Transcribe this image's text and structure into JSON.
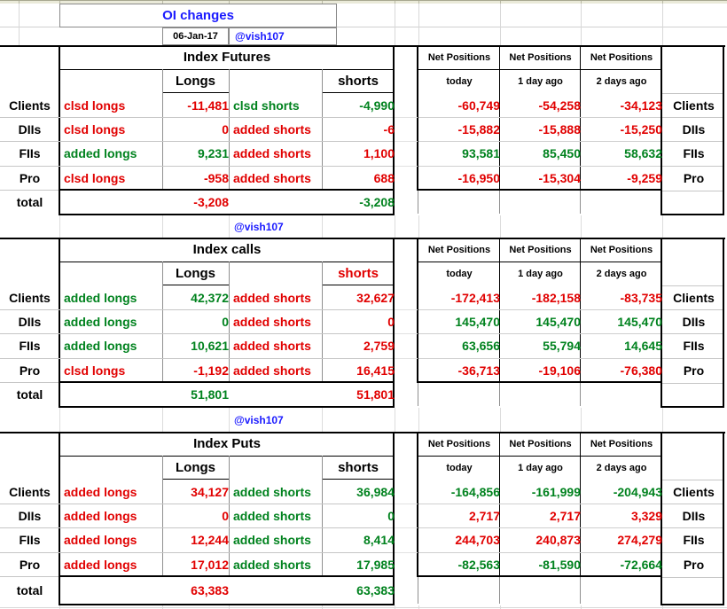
{
  "app": {
    "kind": "spreadsheet"
  },
  "palette": {
    "red": "#e10000",
    "green": "#00821e",
    "blue": "#1a1aff",
    "black": "#000000",
    "grid_light": "#c6c6c6",
    "grid_dark": "#8f8f8f",
    "top_strip": "#eaead9"
  },
  "header": {
    "title": "OI changes",
    "date": "06-Jan-17",
    "handle": "@vish107"
  },
  "sections": [
    {
      "name": "index-futures",
      "title": "Index Futures",
      "longs": {
        "label": "Longs",
        "color": "black"
      },
      "shorts": {
        "label": "shorts",
        "color": "black"
      },
      "net_header": [
        "Net Positions",
        "Net Positions",
        "Net Positions"
      ],
      "periods": [
        "today",
        "1 day ago",
        "2 days ago"
      ],
      "rows": [
        {
          "label": "Clients",
          "a1": "clsd longs",
          "a1c": "red",
          "v1": "-11,481",
          "v1c": "red",
          "a2": "clsd shorts",
          "a2c": "green",
          "v2": "-4,990",
          "v2c": "green",
          "net": [
            "-60,749",
            "-54,258",
            "-34,123"
          ],
          "netc": [
            "red",
            "red",
            "red"
          ],
          "rlabel": "Clients"
        },
        {
          "label": "DIIs",
          "a1": "clsd longs",
          "a1c": "red",
          "v1": "0",
          "v1c": "red",
          "a2": "added shorts",
          "a2c": "red",
          "v2": "-6",
          "v2c": "red",
          "net": [
            "-15,882",
            "-15,888",
            "-15,250"
          ],
          "netc": [
            "red",
            "red",
            "red"
          ],
          "rlabel": "DIIs"
        },
        {
          "label": "FIIs",
          "a1": "added longs",
          "a1c": "green",
          "v1": "9,231",
          "v1c": "green",
          "a2": "added shorts",
          "a2c": "red",
          "v2": "1,100",
          "v2c": "red",
          "net": [
            "93,581",
            "85,450",
            "58,632"
          ],
          "netc": [
            "green",
            "green",
            "green"
          ],
          "rlabel": "FIIs"
        },
        {
          "label": "Pro",
          "a1": "clsd longs",
          "a1c": "red",
          "v1": "-958",
          "v1c": "red",
          "a2": "added shorts",
          "a2c": "red",
          "v2": "688",
          "v2c": "red",
          "net": [
            "-16,950",
            "-15,304",
            "-9,259"
          ],
          "netc": [
            "red",
            "red",
            "red"
          ],
          "rlabel": "Pro"
        }
      ],
      "total": {
        "label": "total",
        "v1": "-3,208",
        "v1c": "red",
        "v2": "-3,208",
        "v2c": "green"
      },
      "footer": "@vish107"
    },
    {
      "name": "index-calls",
      "title": "Index calls",
      "longs": {
        "label": "Longs",
        "color": "black"
      },
      "shorts": {
        "label": "shorts",
        "color": "red"
      },
      "net_header": [
        "Net Positions",
        "Net Positions",
        "Net Positions"
      ],
      "periods": [
        "today",
        "1 day ago",
        "2 days ago"
      ],
      "rows": [
        {
          "label": "Clients",
          "a1": "added longs",
          "a1c": "green",
          "v1": "42,372",
          "v1c": "green",
          "a2": "added shorts",
          "a2c": "red",
          "v2": "32,627",
          "v2c": "red",
          "net": [
            "-172,413",
            "-182,158",
            "-83,735"
          ],
          "netc": [
            "red",
            "red",
            "red"
          ],
          "rlabel": "Clients"
        },
        {
          "label": "DIIs",
          "a1": "added longs",
          "a1c": "green",
          "v1": "0",
          "v1c": "green",
          "a2": "added shorts",
          "a2c": "red",
          "v2": "0",
          "v2c": "red",
          "net": [
            "145,470",
            "145,470",
            "145,470"
          ],
          "netc": [
            "green",
            "green",
            "green"
          ],
          "rlabel": "DIIs"
        },
        {
          "label": "FIIs",
          "a1": "added longs",
          "a1c": "green",
          "v1": "10,621",
          "v1c": "green",
          "a2": "added shorts",
          "a2c": "red",
          "v2": "2,759",
          "v2c": "red",
          "net": [
            "63,656",
            "55,794",
            "14,645"
          ],
          "netc": [
            "green",
            "green",
            "green"
          ],
          "rlabel": "FIIs"
        },
        {
          "label": "Pro",
          "a1": "clsd longs",
          "a1c": "red",
          "v1": "-1,192",
          "v1c": "red",
          "a2": "added shorts",
          "a2c": "red",
          "v2": "16,415",
          "v2c": "red",
          "net": [
            "-36,713",
            "-19,106",
            "-76,380"
          ],
          "netc": [
            "red",
            "red",
            "red"
          ],
          "rlabel": "Pro"
        }
      ],
      "total": {
        "label": "total",
        "v1": "51,801",
        "v1c": "green",
        "v2": "51,801",
        "v2c": "red"
      },
      "footer": "@vish107"
    },
    {
      "name": "index-puts",
      "title": "Index Puts",
      "longs": {
        "label": "Longs",
        "color": "black"
      },
      "shorts": {
        "label": "shorts",
        "color": "black"
      },
      "net_header": [
        "Net Positions",
        "Net Positions",
        "Net Positions"
      ],
      "periods": [
        "today",
        "1 day ago",
        "2 days ago"
      ],
      "rows": [
        {
          "label": "Clients",
          "a1": "added longs",
          "a1c": "red",
          "v1": "34,127",
          "v1c": "red",
          "a2": "added shorts",
          "a2c": "green",
          "v2": "36,984",
          "v2c": "green",
          "net": [
            "-164,856",
            "-161,999",
            "-204,943"
          ],
          "netc": [
            "green",
            "green",
            "green"
          ],
          "rlabel": "Clients"
        },
        {
          "label": "DIIs",
          "a1": "added longs",
          "a1c": "red",
          "v1": "0",
          "v1c": "red",
          "a2": "added shorts",
          "a2c": "green",
          "v2": "0",
          "v2c": "green",
          "net": [
            "2,717",
            "2,717",
            "3,329"
          ],
          "netc": [
            "red",
            "red",
            "red"
          ],
          "rlabel": "DIIs"
        },
        {
          "label": "FIIs",
          "a1": "added longs",
          "a1c": "red",
          "v1": "12,244",
          "v1c": "red",
          "a2": "added shorts",
          "a2c": "green",
          "v2": "8,414",
          "v2c": "green",
          "net": [
            "244,703",
            "240,873",
            "274,279"
          ],
          "netc": [
            "red",
            "red",
            "red"
          ],
          "rlabel": "FIIs"
        },
        {
          "label": "Pro",
          "a1": "added longs",
          "a1c": "red",
          "v1": "17,012",
          "v1c": "red",
          "a2": "added shorts",
          "a2c": "green",
          "v2": "17,985",
          "v2c": "green",
          "net": [
            "-82,563",
            "-81,590",
            "-72,664"
          ],
          "netc": [
            "green",
            "green",
            "green"
          ],
          "rlabel": "Pro"
        }
      ],
      "total": {
        "label": "total",
        "v1": "63,383",
        "v1c": "red",
        "v2": "63,383",
        "v2c": "green"
      }
    }
  ]
}
